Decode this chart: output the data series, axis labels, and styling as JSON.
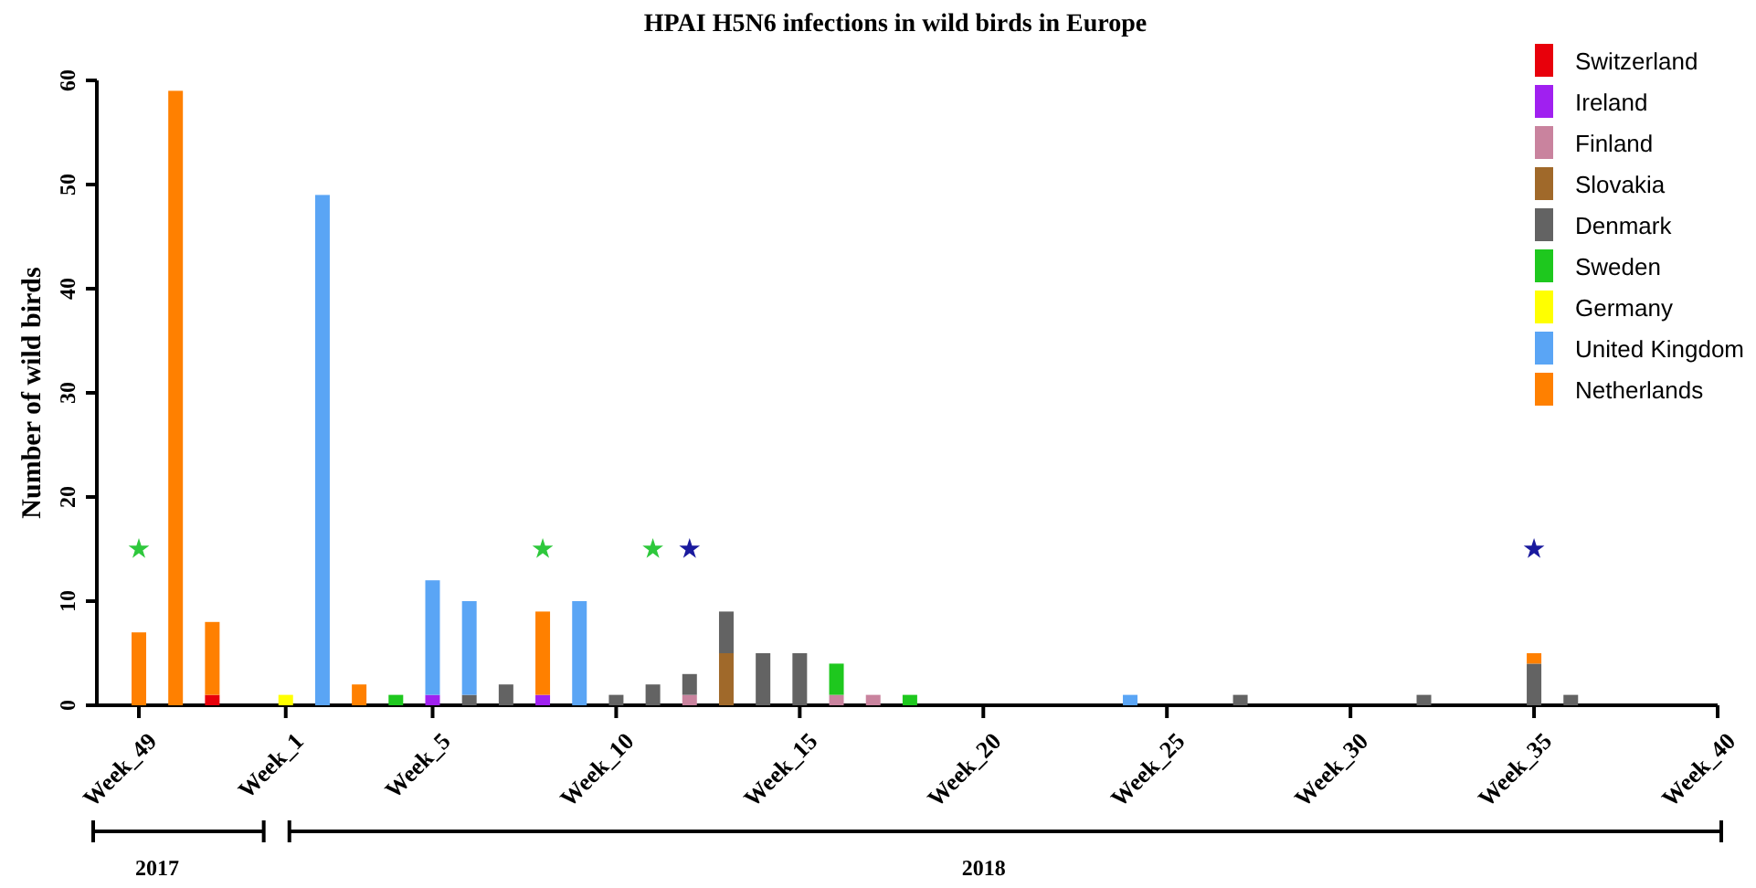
{
  "chart_data": {
    "type": "bar",
    "title": "HPAI H5N6 infections in wild birds in Europe",
    "ylabel": "Number of wild birds",
    "stacked": true,
    "legend": "top right",
    "categories": [
      "Week_49",
      null,
      null,
      null,
      "Week_1",
      null,
      null,
      null,
      "Week_5",
      null,
      null,
      null,
      null,
      "Week_10",
      null,
      null,
      null,
      null,
      "Week_15",
      null,
      null,
      null,
      null,
      "Week_20",
      null,
      null,
      null,
      null,
      "Week_25",
      null,
      null,
      null,
      null,
      "Week_30",
      null,
      null,
      null,
      null,
      "Week_35",
      null,
      null,
      null,
      null,
      "Week_40"
    ],
    "ylim": [
      0,
      60
    ],
    "yticks": [
      0,
      10,
      20,
      30,
      40,
      50,
      60
    ],
    "annotations": [
      "2017",
      "2018"
    ],
    "series": [
      {
        "name": "Switzerland",
        "color": "#e8000b",
        "values": [
          null,
          null,
          1,
          null,
          null,
          null,
          null,
          null,
          null,
          null,
          null,
          null,
          null,
          null,
          null,
          null,
          null,
          null,
          null,
          null,
          null,
          null,
          null,
          null,
          null,
          null,
          null,
          null,
          null,
          null,
          null,
          null,
          null,
          null,
          null,
          null,
          null,
          null,
          null,
          null,
          null,
          null,
          null,
          null
        ]
      },
      {
        "name": "Ireland",
        "color": "#a020f0",
        "values": [
          null,
          null,
          null,
          null,
          null,
          null,
          null,
          null,
          1,
          null,
          null,
          1,
          null,
          null,
          null,
          null,
          null,
          null,
          null,
          null,
          null,
          null,
          null,
          null,
          null,
          null,
          null,
          null,
          null,
          null,
          null,
          null,
          null,
          null,
          null,
          null,
          null,
          null,
          null,
          null,
          null,
          null,
          null,
          null
        ]
      },
      {
        "name": "Finland",
        "color": "#c9839e",
        "values": [
          null,
          null,
          null,
          null,
          null,
          null,
          null,
          null,
          null,
          null,
          null,
          null,
          null,
          null,
          null,
          1,
          null,
          null,
          null,
          1,
          1,
          null,
          null,
          null,
          null,
          null,
          null,
          null,
          null,
          null,
          null,
          null,
          null,
          null,
          null,
          null,
          null,
          null,
          null,
          null,
          null,
          null,
          null,
          null
        ]
      },
      {
        "name": "Slovakia",
        "color": "#a0692a",
        "values": [
          null,
          null,
          null,
          null,
          null,
          null,
          null,
          null,
          null,
          null,
          null,
          null,
          null,
          null,
          null,
          null,
          5,
          null,
          null,
          null,
          null,
          null,
          null,
          null,
          null,
          null,
          null,
          null,
          null,
          null,
          null,
          null,
          null,
          null,
          null,
          null,
          null,
          null,
          null,
          null,
          null,
          null,
          null,
          null
        ]
      },
      {
        "name": "Denmark",
        "color": "#636363",
        "values": [
          null,
          null,
          null,
          null,
          null,
          null,
          null,
          null,
          null,
          1,
          2,
          null,
          null,
          1,
          2,
          2,
          4,
          5,
          5,
          null,
          null,
          null,
          null,
          null,
          null,
          null,
          null,
          null,
          null,
          null,
          1,
          null,
          null,
          null,
          null,
          1,
          null,
          null,
          4,
          1,
          null,
          null,
          null,
          null
        ]
      },
      {
        "name": "Sweden",
        "color": "#1ec81e",
        "values": [
          null,
          null,
          null,
          null,
          null,
          null,
          null,
          1,
          null,
          null,
          null,
          null,
          null,
          null,
          null,
          null,
          null,
          null,
          null,
          3,
          null,
          1,
          null,
          null,
          null,
          null,
          null,
          null,
          null,
          null,
          null,
          null,
          null,
          null,
          null,
          null,
          null,
          null,
          null,
          null,
          null,
          null,
          null,
          null
        ]
      },
      {
        "name": "Germany",
        "color": "#ffff00",
        "values": [
          null,
          null,
          null,
          null,
          1,
          null,
          null,
          null,
          null,
          null,
          null,
          null,
          null,
          null,
          null,
          null,
          null,
          null,
          null,
          null,
          null,
          null,
          null,
          null,
          null,
          null,
          null,
          null,
          null,
          null,
          null,
          null,
          null,
          null,
          null,
          null,
          null,
          null,
          null,
          null,
          null,
          null,
          null,
          null
        ]
      },
      {
        "name": "United Kingdom",
        "color": "#5aa5f5",
        "values": [
          null,
          null,
          null,
          null,
          null,
          49,
          null,
          null,
          11,
          9,
          null,
          null,
          10,
          null,
          null,
          null,
          null,
          null,
          null,
          null,
          null,
          null,
          null,
          null,
          null,
          null,
          null,
          1,
          null,
          null,
          null,
          null,
          null,
          null,
          null,
          null,
          null,
          null,
          null,
          null,
          null,
          null,
          null,
          null
        ]
      },
      {
        "name": "Netherlands",
        "color": "#ff8000",
        "values": [
          7,
          59,
          7,
          null,
          null,
          null,
          2,
          null,
          null,
          null,
          null,
          8,
          null,
          null,
          null,
          null,
          null,
          null,
          null,
          null,
          null,
          null,
          null,
          null,
          null,
          null,
          null,
          null,
          null,
          null,
          null,
          null,
          null,
          null,
          null,
          null,
          null,
          null,
          1,
          null,
          null,
          null,
          null,
          null
        ]
      },
      {
        "type": "scatter",
        "marker": "star",
        "color": "#2ec83c",
        "values": [
          15,
          null,
          null,
          null,
          null,
          null,
          null,
          null,
          null,
          null,
          null,
          15,
          null,
          null,
          15,
          null,
          null,
          null,
          null,
          null,
          null,
          null,
          null,
          null,
          null,
          null,
          null,
          null,
          null,
          null,
          null,
          null,
          null,
          null,
          null,
          null,
          null,
          null,
          null,
          null,
          null,
          null,
          null,
          null
        ]
      },
      {
        "type": "scatter",
        "marker": "star",
        "color": "#1a1a9e",
        "values": [
          null,
          null,
          null,
          null,
          null,
          null,
          null,
          null,
          null,
          null,
          null,
          null,
          null,
          null,
          null,
          15,
          null,
          null,
          null,
          null,
          null,
          null,
          null,
          null,
          null,
          null,
          null,
          null,
          null,
          null,
          null,
          null,
          null,
          null,
          null,
          null,
          null,
          null,
          15,
          null,
          null,
          null,
          null,
          null
        ]
      }
    ]
  }
}
